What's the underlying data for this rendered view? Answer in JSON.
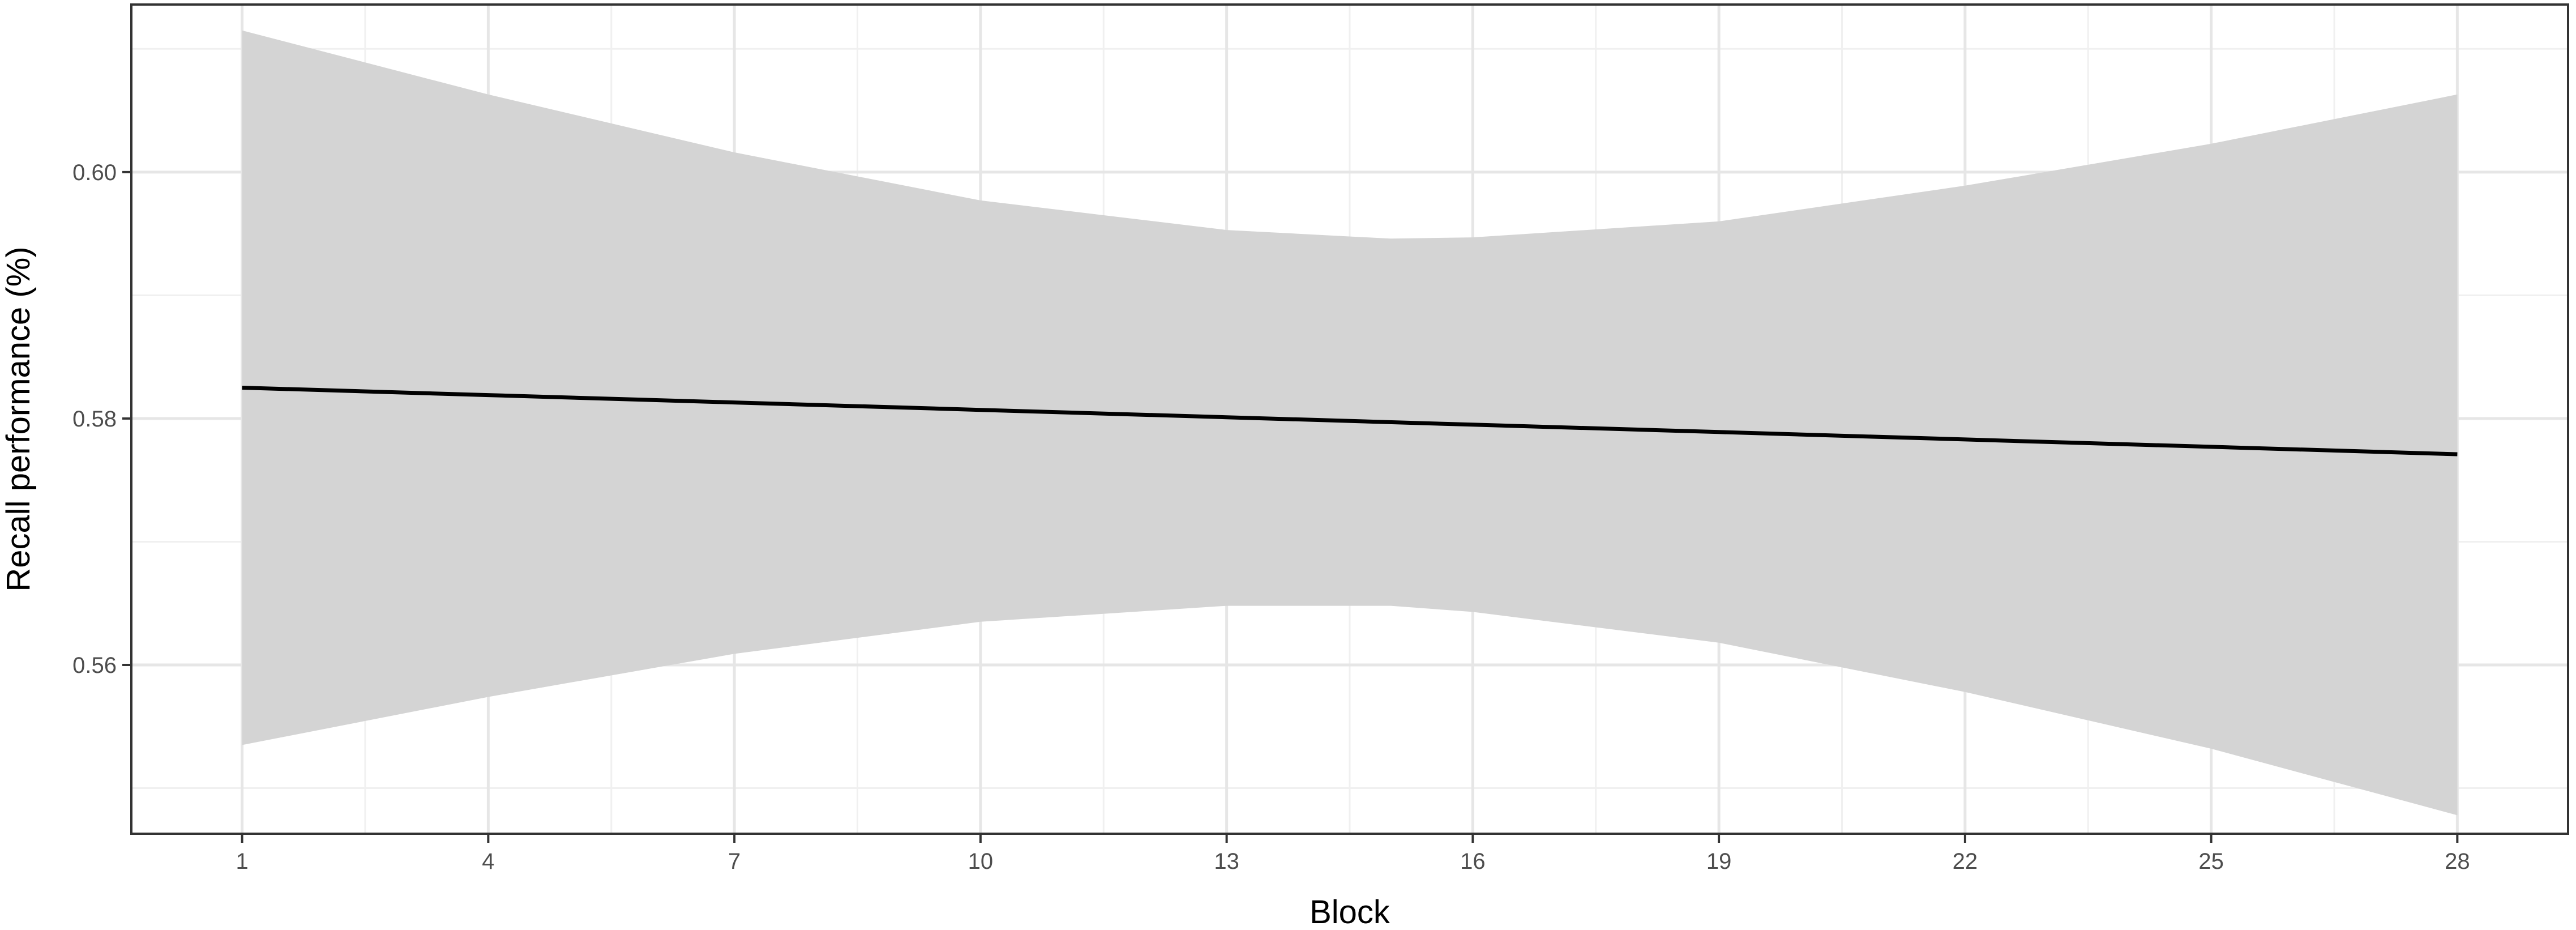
{
  "chart_data": {
    "type": "line",
    "title": "",
    "xlabel": "Block",
    "ylabel": "Recall performance (%)",
    "xlim": [
      -0.35,
      29.35
    ],
    "ylim": [
      0.5463,
      0.6136
    ],
    "x_ticks": [
      1,
      4,
      7,
      10,
      13,
      16,
      19,
      22,
      25,
      28
    ],
    "y_ticks": [
      0.56,
      0.58,
      0.6
    ],
    "grid": true,
    "legend": "none",
    "series": [
      {
        "kind": "line",
        "x": [
          1,
          4,
          7,
          10,
          13,
          16,
          19,
          22,
          25,
          28
        ],
        "y": [
          0.5825,
          0.5819,
          0.5813,
          0.5807,
          0.5801,
          0.5795,
          0.5789,
          0.5783,
          0.5777,
          0.5771
        ],
        "color": "#000000"
      },
      {
        "kind": "confidence_band",
        "x": [
          1,
          4,
          7,
          10,
          13,
          15,
          16,
          19,
          22,
          25,
          28
        ],
        "lower": [
          0.5535,
          0.5574,
          0.5609,
          0.5635,
          0.5648,
          0.5648,
          0.5643,
          0.5618,
          0.5578,
          0.5532,
          0.5478
        ],
        "upper": [
          0.6115,
          0.6063,
          0.6016,
          0.5977,
          0.5953,
          0.5946,
          0.5947,
          0.596,
          0.5989,
          0.6023,
          0.6063
        ],
        "color": "#d4d4d4"
      }
    ]
  }
}
